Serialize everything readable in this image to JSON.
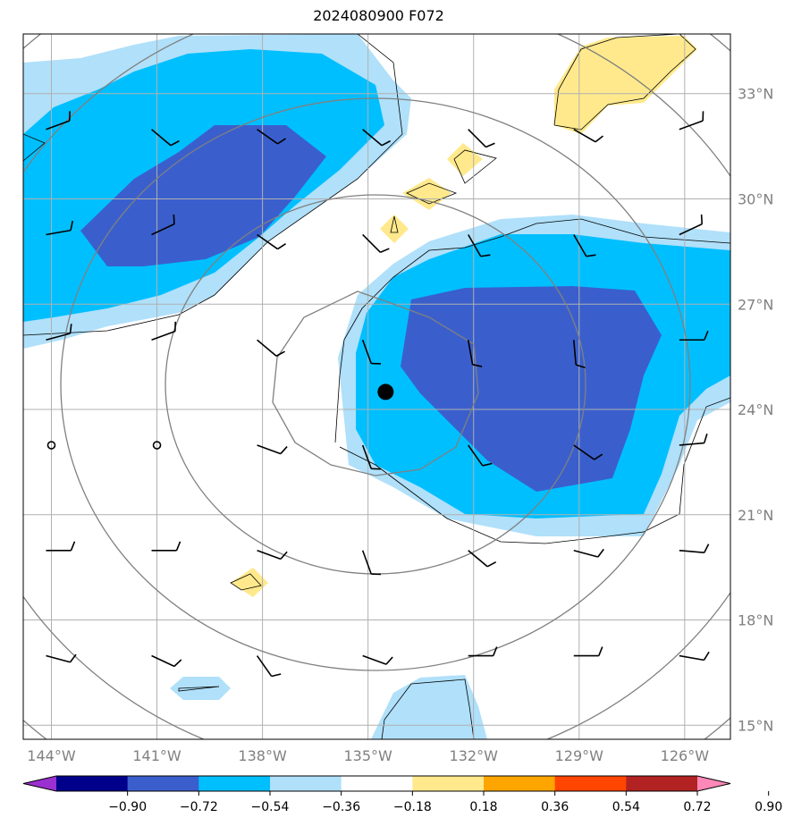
{
  "title": "2024080900 F072",
  "map": {
    "lon_range": [
      -144.8,
      -124.7
    ],
    "lat_range": [
      14.6,
      34.7
    ],
    "lon_ticks": [
      -144,
      -141,
      -138,
      -135,
      -132,
      -129,
      -126
    ],
    "lon_tick_labels": [
      "144°W",
      "141°W",
      "138°W",
      "135°W",
      "132°W",
      "129°W",
      "126°W"
    ],
    "lat_ticks": [
      15,
      18,
      21,
      24,
      27,
      30,
      33
    ],
    "lat_tick_labels": [
      "15°N",
      "18°N",
      "21°N",
      "24°N",
      "27°N",
      "30°N",
      "33°N"
    ],
    "grid": true,
    "storm_center": {
      "lon": -134.5,
      "lat": 24.5
    }
  },
  "colorbar": {
    "boundaries": [
      "−0.90",
      "−0.72",
      "−0.54",
      "−0.36",
      "−0.18",
      "0.18",
      "0.36",
      "0.54",
      "0.72",
      "0.90"
    ],
    "colors": [
      "#9b30d0",
      "#00008b",
      "#3a5fcd",
      "#00bfff",
      "#b0e0fa",
      "#ffffff",
      "#ffe98c",
      "#ffa500",
      "#ff4500",
      "#b22222",
      "#ff88b8"
    ],
    "extend": "both"
  },
  "fill_colors": {
    "light_blue": "#b0e0fa",
    "deep_sky_blue": "#00bfff",
    "royal_blue": "#3a5fcd",
    "light_yellow": "#ffe98c"
  }
}
